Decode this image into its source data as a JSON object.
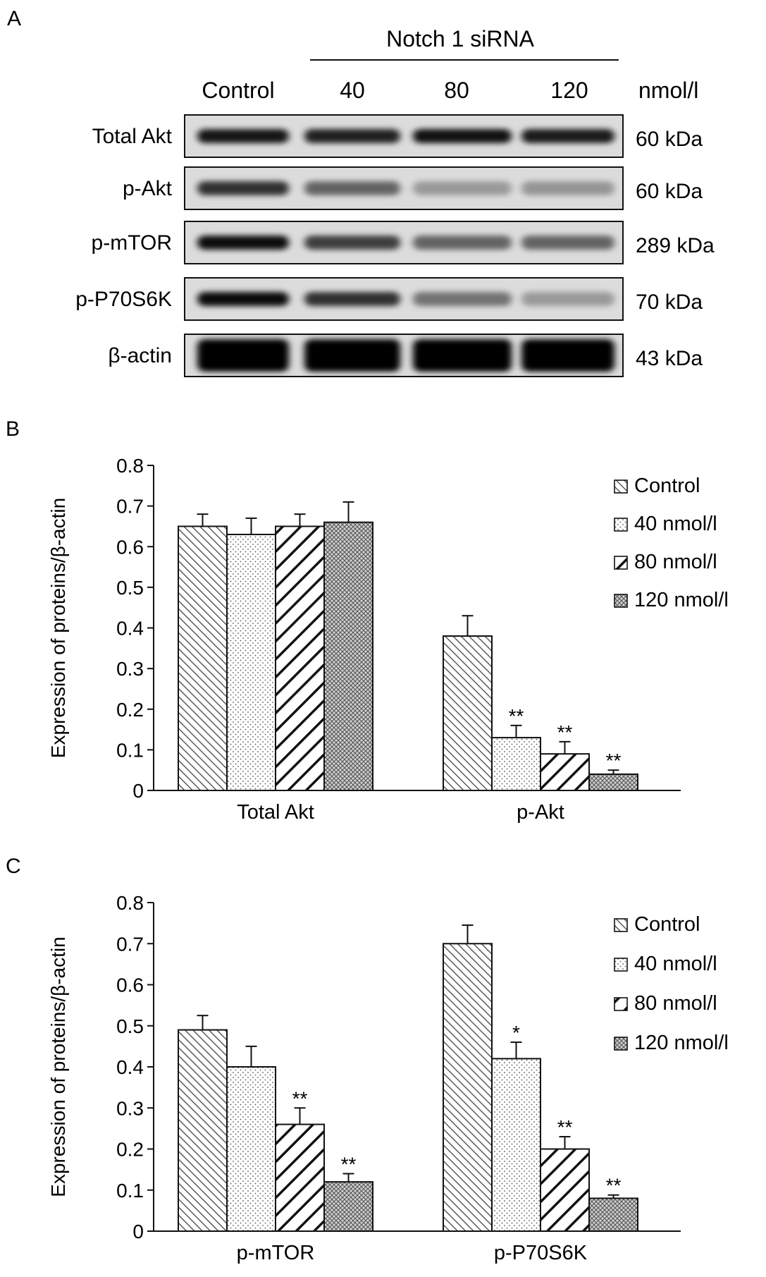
{
  "panel_labels": {
    "a": "A",
    "b": "B",
    "c": "C"
  },
  "blot": {
    "group_header": "Notch 1 siRNA",
    "lane_labels": [
      "Control",
      "40",
      "80",
      "120"
    ],
    "unit": "nmol/l",
    "rows": [
      {
        "label": "Total Akt",
        "size": "60 kDa",
        "intensity": [
          0.9,
          0.85,
          0.92,
          0.88
        ]
      },
      {
        "label": "p-Akt",
        "size": "60 kDa",
        "intensity": [
          0.78,
          0.55,
          0.3,
          0.32
        ]
      },
      {
        "label": "p-mTOR",
        "size": "289 kDa",
        "intensity": [
          0.95,
          0.72,
          0.55,
          0.55
        ]
      },
      {
        "label": "p-P70S6K",
        "size": "70 kDa",
        "intensity": [
          0.95,
          0.78,
          0.48,
          0.3
        ]
      },
      {
        "label": "β-actin",
        "size": "43 kDa",
        "intensity": [
          1.0,
          1.0,
          1.0,
          1.0
        ]
      }
    ]
  },
  "chart_data": [
    {
      "type": "bar",
      "categories": [
        "Total Akt",
        "p-Akt"
      ],
      "series": [
        {
          "name": "Control",
          "values": [
            0.65,
            0.38
          ],
          "errors": [
            0.03,
            0.05
          ],
          "sig": [
            "",
            ""
          ]
        },
        {
          "name": "40 nmol/l",
          "values": [
            0.63,
            0.13
          ],
          "errors": [
            0.04,
            0.03
          ],
          "sig": [
            "",
            "**"
          ]
        },
        {
          "name": "80 nmol/l",
          "values": [
            0.65,
            0.09
          ],
          "errors": [
            0.03,
            0.03
          ],
          "sig": [
            "",
            "**"
          ]
        },
        {
          "name": "120 nmol/l",
          "values": [
            0.66,
            0.04
          ],
          "errors": [
            0.05,
            0.01
          ],
          "sig": [
            "",
            "**"
          ]
        }
      ],
      "ylabel": "Expression of proteins/β-actin",
      "ylim": [
        0,
        0.8
      ],
      "yticks": [
        "0",
        "0.1",
        "0.2",
        "0.3",
        "0.4",
        "0.5",
        "0.6",
        "0.7",
        "0.8"
      ],
      "legend_placement": "top-right",
      "grid": false
    },
    {
      "type": "bar",
      "categories": [
        "p-mTOR",
        "p-P70S6K"
      ],
      "series": [
        {
          "name": "Control",
          "values": [
            0.49,
            0.7
          ],
          "errors": [
            0.035,
            0.045
          ],
          "sig": [
            "",
            ""
          ]
        },
        {
          "name": "40 nmol/l",
          "values": [
            0.4,
            0.42
          ],
          "errors": [
            0.05,
            0.04
          ],
          "sig": [
            "",
            "*"
          ]
        },
        {
          "name": "80 nmol/l",
          "values": [
            0.26,
            0.2
          ],
          "errors": [
            0.04,
            0.03
          ],
          "sig": [
            "**",
            "**"
          ]
        },
        {
          "name": "120 nmol/l",
          "values": [
            0.12,
            0.08
          ],
          "errors": [
            0.02,
            0.008
          ],
          "sig": [
            "**",
            "**"
          ]
        }
      ],
      "ylabel": "Expression of proteins/β-actin",
      "ylim": [
        0,
        0.8
      ],
      "yticks": [
        "0",
        "0.1",
        "0.2",
        "0.3",
        "0.4",
        "0.5",
        "0.6",
        "0.7",
        "0.8"
      ],
      "legend_placement": "top-right",
      "grid": false
    }
  ]
}
